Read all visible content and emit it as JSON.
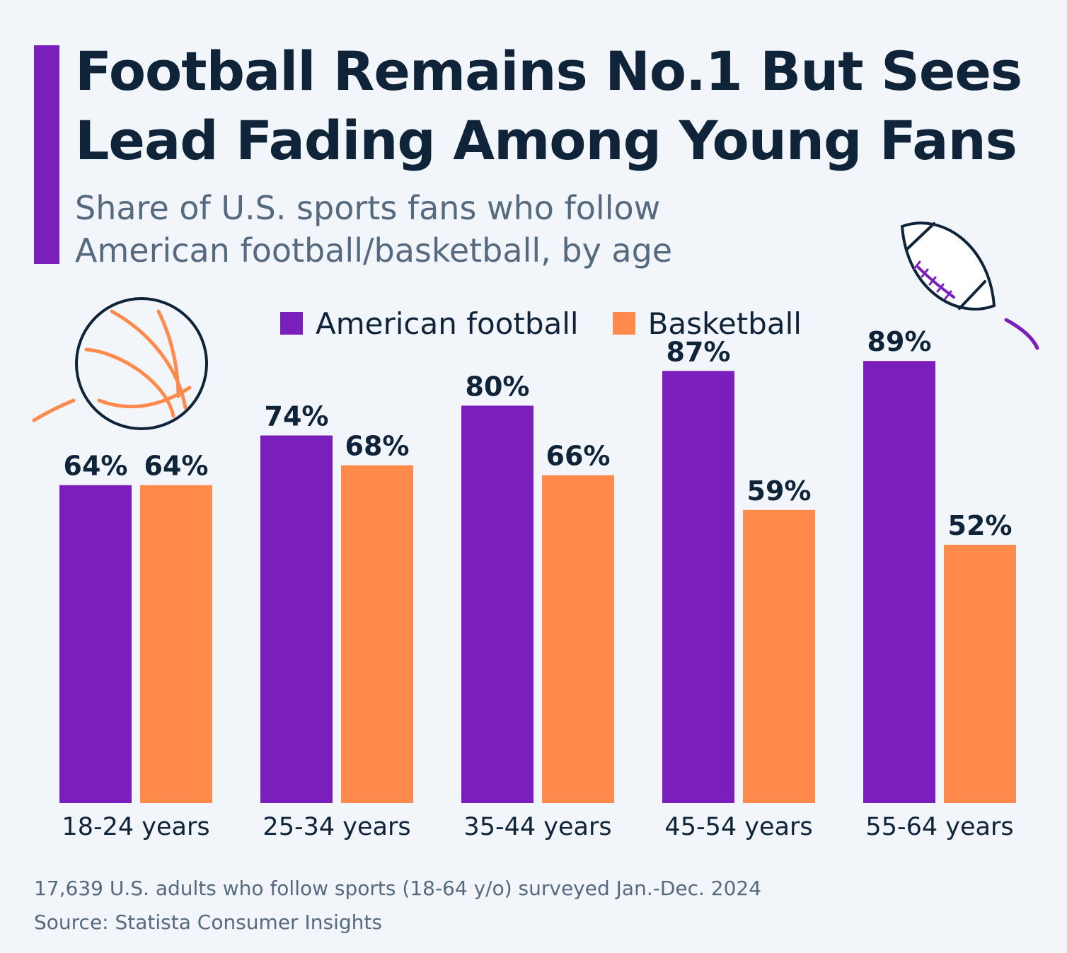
{
  "header": {
    "title_line1": "Football Remains No.1 But Sees",
    "title_line2": "Lead Fading Among Young Fans",
    "subtitle_line1": "Share of U.S. sports fans who follow",
    "subtitle_line2": "American football/basketball, by age"
  },
  "colors": {
    "accent": "#7a1fbb",
    "football": "#7a1fbb",
    "basketball": "#ff8a4c",
    "text_dark": "#0f2439",
    "text_muted": "#566a7f",
    "background": "#f2f6fa"
  },
  "chart_data": {
    "type": "bar",
    "categories": [
      "18-24 years",
      "25-34 years",
      "35-44 years",
      "45-54 years",
      "55-64 years"
    ],
    "series": [
      {
        "name": "American football",
        "values": [
          64,
          74,
          80,
          87,
          89
        ],
        "labels": [
          "64%",
          "74%",
          "80%",
          "87%",
          "89%"
        ]
      },
      {
        "name": "Basketball",
        "values": [
          64,
          68,
          66,
          59,
          52
        ],
        "labels": [
          "64%",
          "68%",
          "66%",
          "59%",
          "52%"
        ]
      }
    ],
    "unit": "%",
    "ylim": [
      0,
      100
    ],
    "grid": false,
    "legend_position": "top-center"
  },
  "icons": [
    "basketball-icon",
    "american-football-icon"
  ],
  "footer": {
    "note": "17,639 U.S. adults who follow sports (18-64 y/o) surveyed Jan.-Dec. 2024",
    "source": "Source: Statista Consumer Insights"
  }
}
